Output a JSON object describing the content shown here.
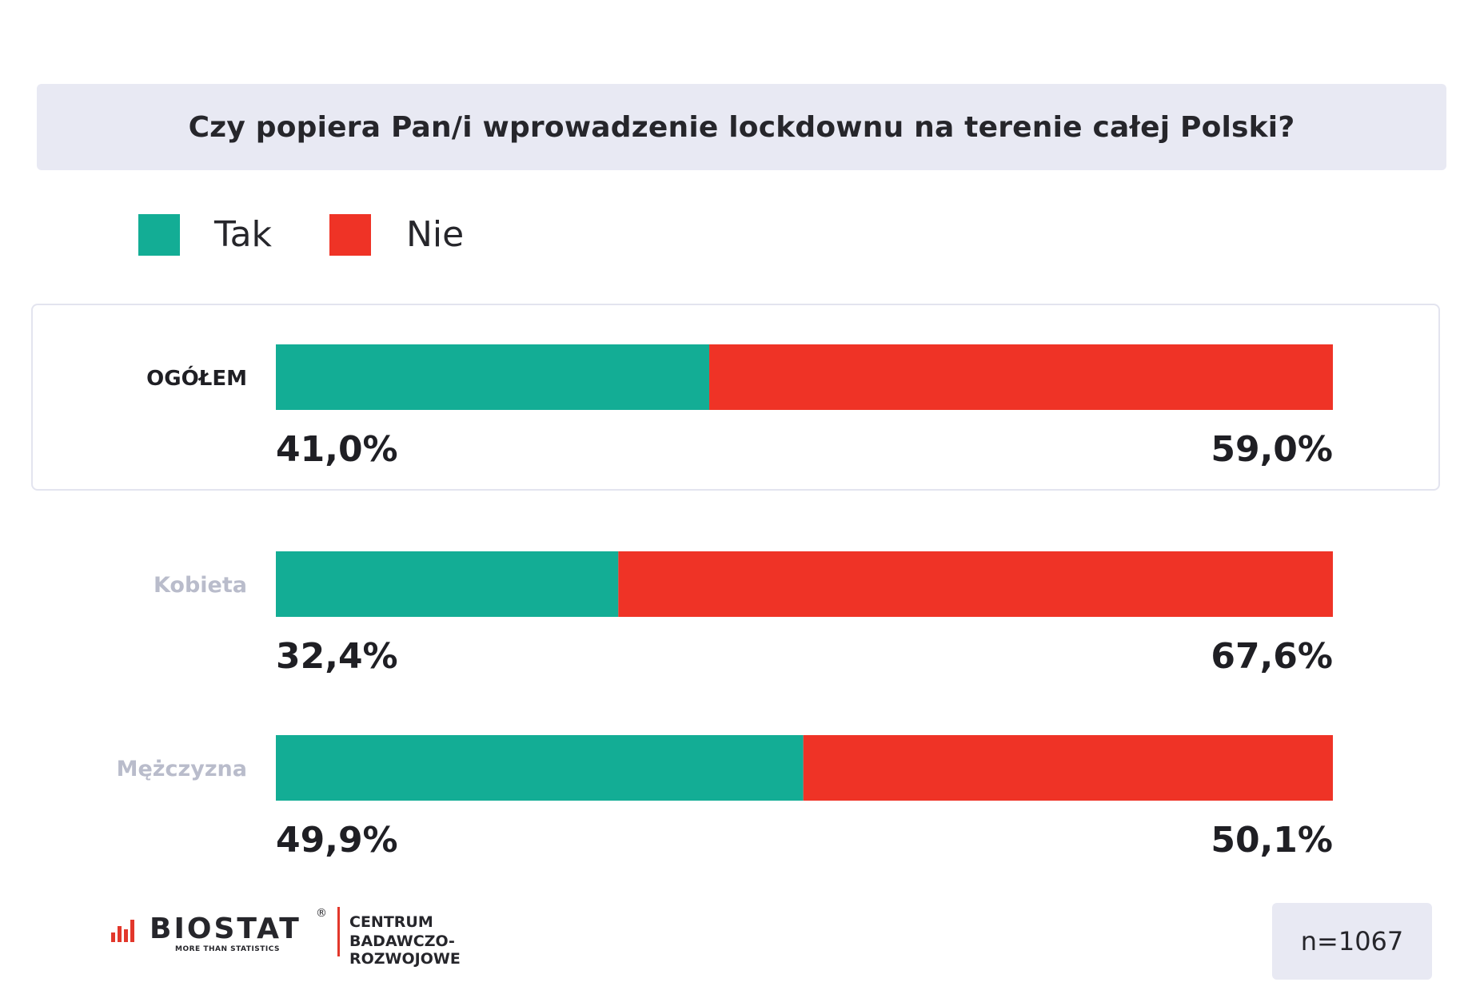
{
  "title": "Czy popiera Pan/i wprowadzenie lockdownu na terenie całej Polski?",
  "legend": [
    {
      "label": "Tak",
      "color": "#13ad95"
    },
    {
      "label": "Nie",
      "color": "#ef3326"
    }
  ],
  "chart_data": {
    "type": "bar",
    "orientation": "horizontal-stacked-100",
    "categories": [
      "OGÓŁEM",
      "Kobieta",
      "Mężczyzna"
    ],
    "series": [
      {
        "name": "Tak",
        "color": "#13ad95",
        "values": [
          41.0,
          32.4,
          49.9
        ]
      },
      {
        "name": "Nie",
        "color": "#ef3326",
        "values": [
          59.0,
          67.6,
          50.1
        ]
      }
    ],
    "value_labels": [
      [
        "41,0%",
        "59,0%"
      ],
      [
        "32,4%",
        "67,6%"
      ],
      [
        "49,9%",
        "50,1%"
      ]
    ],
    "title": "Czy popiera Pan/i wprowadzenie lockdownu na terenie całej Polski?",
    "xlim": [
      0,
      100
    ],
    "legend_position": "top-left",
    "grid": false
  },
  "logo": {
    "name": "BIOSTAT",
    "registered": "®",
    "tagline": "MORE THAN STATISTICS",
    "line1": "CENTRUM",
    "line2": "BADAWCZO-ROZWOJOWE"
  },
  "sample": "n=1067"
}
